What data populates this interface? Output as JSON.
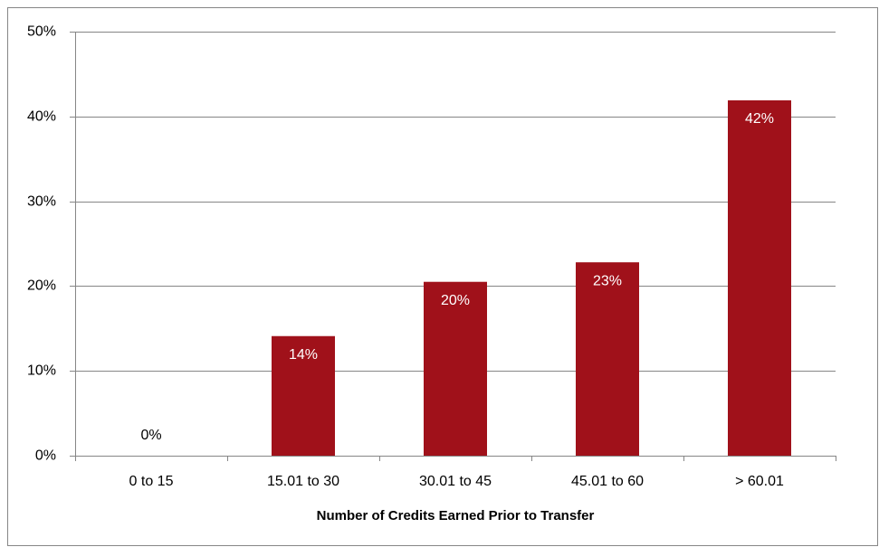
{
  "chart_data": {
    "type": "bar",
    "x_label": "Number of Credits Earned Prior to Transfer",
    "categories": [
      "0 to 15",
      "15.01 to 30",
      "30.01 to 45",
      "45.01 to 60",
      "> 60.01"
    ],
    "values": [
      0,
      14.1,
      20.5,
      22.8,
      41.9
    ],
    "value_labels": [
      "0%",
      "14%",
      "20%",
      "23%",
      "42%"
    ],
    "color": "#a0111a",
    "ylim": [
      0,
      50
    ],
    "yticks": [
      {
        "value": 0,
        "label": "0%"
      },
      {
        "value": 10,
        "label": "10%"
      },
      {
        "value": 20,
        "label": "20%"
      },
      {
        "value": 30,
        "label": "30%"
      },
      {
        "value": 40,
        "label": "40%"
      },
      {
        "value": 50,
        "label": "50%"
      }
    ],
    "grid": true
  }
}
